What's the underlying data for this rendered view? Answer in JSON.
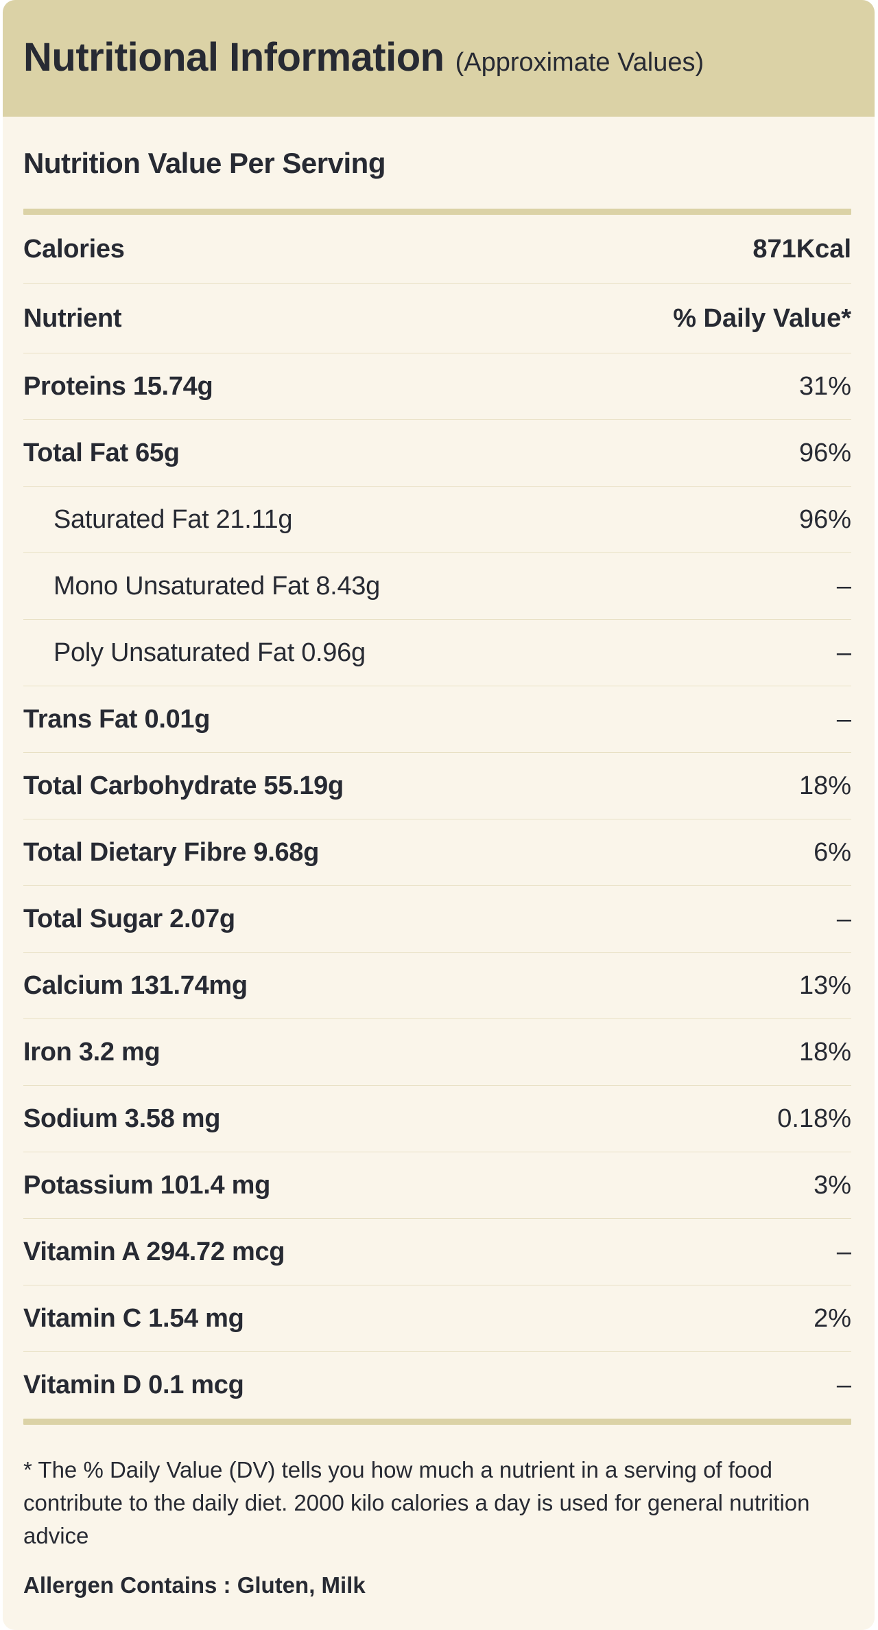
{
  "header": {
    "title": "Nutritional Information",
    "subtitle": "(Approximate Values)"
  },
  "section_title": "Nutrition Value Per Serving",
  "calories_row": {
    "label": "Calories",
    "value": "871Kcal"
  },
  "table_header": {
    "label": "Nutrient",
    "value": "% Daily Value*"
  },
  "rows": [
    {
      "label": "Proteins 15.74g",
      "value": "31%",
      "indent": false
    },
    {
      "label": "Total Fat 65g",
      "value": "96%",
      "indent": false
    },
    {
      "label": "Saturated Fat 21.11g",
      "value": "96%",
      "indent": true
    },
    {
      "label": "Mono Unsaturated Fat 8.43g",
      "value": "–",
      "indent": true
    },
    {
      "label": "Poly Unsaturated Fat 0.96g",
      "value": "–",
      "indent": true
    },
    {
      "label": "Trans Fat 0.01g",
      "value": "–",
      "indent": false
    },
    {
      "label": "Total Carbohydrate 55.19g",
      "value": "18%",
      "indent": false
    },
    {
      "label": "Total Dietary Fibre 9.68g",
      "value": "6%",
      "indent": false
    },
    {
      "label": "Total Sugar 2.07g",
      "value": "–",
      "indent": false
    },
    {
      "label": "Calcium 131.74mg",
      "value": "13%",
      "indent": false
    },
    {
      "label": "Iron 3.2 mg",
      "value": "18%",
      "indent": false
    },
    {
      "label": "Sodium 3.58 mg",
      "value": "0.18%",
      "indent": false
    },
    {
      "label": "Potassium 101.4 mg",
      "value": "3%",
      "indent": false
    },
    {
      "label": "Vitamin A 294.72 mcg",
      "value": "–",
      "indent": false
    },
    {
      "label": "Vitamin C 1.54 mg",
      "value": "2%",
      "indent": false
    },
    {
      "label": "Vitamin D 0.1 mcg",
      "value": "–",
      "indent": false
    }
  ],
  "footnote": "* The % Daily Value (DV) tells you how much a nutrient in a serving of food contribute to the daily diet. 2000 kilo calories a day is used for general nutrition advice",
  "allergen": "Allergen Contains : Gluten, Milk",
  "colors": {
    "header_and_bars": "#dbd2a6",
    "card_background": "#faf5ea",
    "text": "#272a33",
    "divider": "#e8e0c4",
    "page_background": "#ffffff"
  }
}
